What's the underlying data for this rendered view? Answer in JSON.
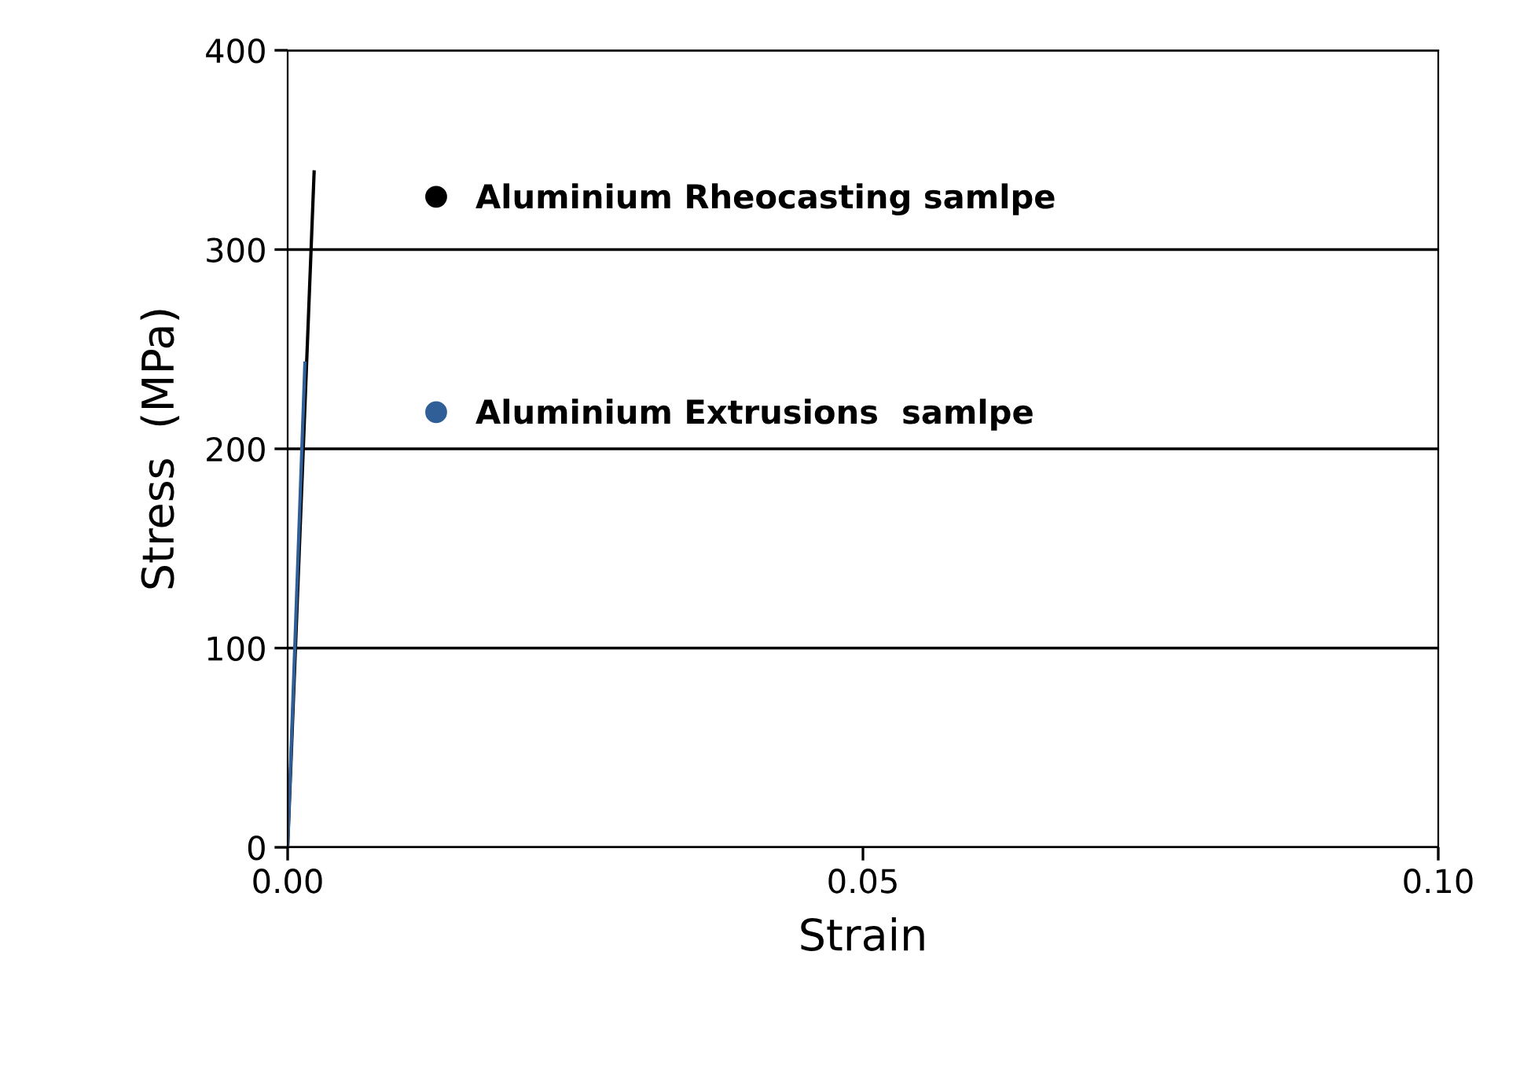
{
  "chart_data": {
    "type": "line",
    "xlabel": "Strain",
    "ylabel": "Stress  (MPa)",
    "series": [
      {
        "name": "Aluminium Rheocasting samlpe",
        "color": "#000000",
        "x": [
          0,
          0.0023
        ],
        "values": [
          0,
          339
        ]
      },
      {
        "name": "Aluminium Extrusions  samlpe",
        "color": "#2f5f96",
        "x": [
          0,
          0.0015
        ],
        "values": [
          0,
          243
        ]
      }
    ],
    "xlim": [
      0,
      0.1
    ],
    "xticks": [
      {
        "value": 0,
        "label": "0.00"
      },
      {
        "value": 0.05,
        "label": "0.05"
      },
      {
        "value": 0.1,
        "label": "0.10"
      }
    ],
    "ylim": [
      0,
      400
    ],
    "yticks": [
      0,
      100,
      200,
      300,
      400
    ],
    "grid": "y",
    "legend": "top left",
    "marker": "none",
    "line_style": "solid"
  }
}
